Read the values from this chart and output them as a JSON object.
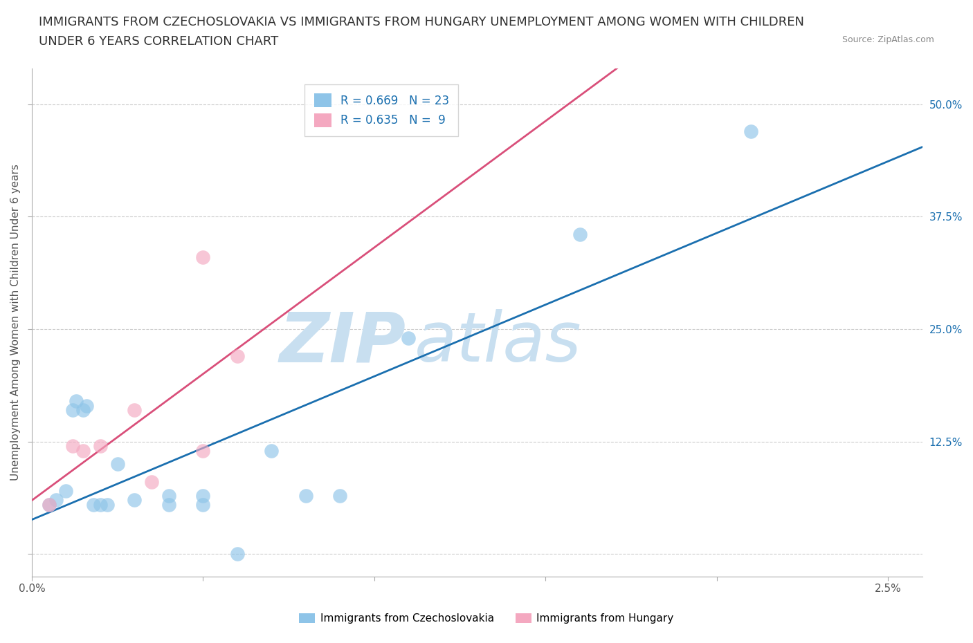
{
  "title_line1": "IMMIGRANTS FROM CZECHOSLOVAKIA VS IMMIGRANTS FROM HUNGARY UNEMPLOYMENT AMONG WOMEN WITH CHILDREN",
  "title_line2": "UNDER 6 YEARS CORRELATION CHART",
  "source": "Source: ZipAtlas.com",
  "ylabel": "Unemployment Among Women with Children Under 6 years",
  "xlabel_blue": "Immigrants from Czechoslovakia",
  "xlabel_pink": "Immigrants from Hungary",
  "r_blue": 0.669,
  "n_blue": 23,
  "r_pink": 0.635,
  "n_pink": 9,
  "color_blue": "#8ec4e8",
  "color_pink": "#f4a8c0",
  "color_blue_line": "#1a6faf",
  "color_pink_line": "#d94f7a",
  "color_blue_text": "#1a6faf",
  "color_pink_text": "#d94f7a",
  "xlim": [
    0.0,
    0.026
  ],
  "ylim": [
    -0.025,
    0.54
  ],
  "yticks": [
    0.0,
    0.125,
    0.25,
    0.375,
    0.5
  ],
  "ytick_labels": [
    "",
    "12.5%",
    "25.0%",
    "37.5%",
    "50.0%"
  ],
  "xticks": [
    0.0,
    0.005,
    0.01,
    0.015,
    0.02,
    0.025
  ],
  "xtick_labels": [
    "0.0%",
    "",
    "",
    "",
    "",
    "2.5%"
  ],
  "blue_x": [
    0.0005,
    0.0007,
    0.001,
    0.0012,
    0.0013,
    0.0015,
    0.0016,
    0.0018,
    0.002,
    0.0022,
    0.0025,
    0.003,
    0.004,
    0.004,
    0.005,
    0.005,
    0.006,
    0.007,
    0.008,
    0.009,
    0.011,
    0.016,
    0.021
  ],
  "blue_y": [
    0.055,
    0.06,
    0.07,
    0.16,
    0.17,
    0.16,
    0.165,
    0.055,
    0.055,
    0.055,
    0.1,
    0.06,
    0.055,
    0.065,
    0.055,
    0.065,
    0.0,
    0.115,
    0.065,
    0.065,
    0.24,
    0.355,
    0.47
  ],
  "pink_x": [
    0.0005,
    0.0012,
    0.0015,
    0.002,
    0.003,
    0.0035,
    0.005,
    0.005,
    0.006
  ],
  "pink_y": [
    0.055,
    0.12,
    0.115,
    0.12,
    0.16,
    0.08,
    0.115,
    0.33,
    0.22
  ],
  "watermark_part1": "ZIP",
  "watermark_part2": "atlas",
  "watermark_color1": "#c8dff0",
  "watermark_color2": "#c8dff0",
  "background_color": "#ffffff",
  "grid_color": "#cccccc",
  "title_fontsize": 13,
  "axis_label_fontsize": 11,
  "tick_fontsize": 11,
  "legend_fontsize": 12
}
